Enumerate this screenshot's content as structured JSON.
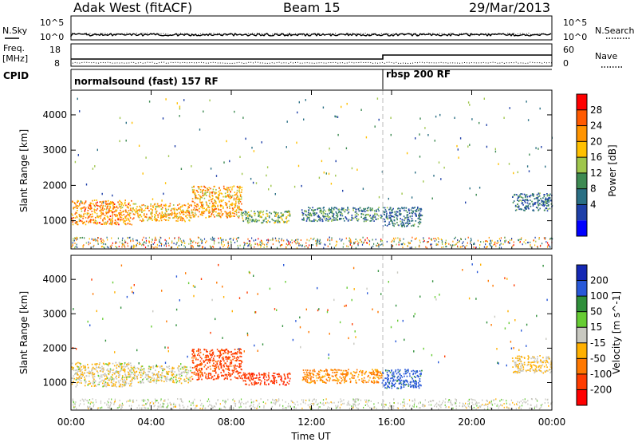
{
  "header": {
    "station": "Adak West (fitACF)",
    "beam": "Beam 15",
    "date": "29/Mar/2013"
  },
  "side_labels": {
    "nsky": "N.Sky",
    "nsearch": "N.Search",
    "freq": "Freq.",
    "freq_unit": "[MHz]",
    "nave": "Nave",
    "cpid": "CPID"
  },
  "noise_axis": {
    "left_ticks": [
      "10^5",
      "10^0"
    ],
    "right_ticks": [
      "10^5",
      "10^0"
    ]
  },
  "freq_axis": {
    "left_ticks": [
      "18",
      "8"
    ],
    "right_ticks": [
      "60",
      "0"
    ]
  },
  "cpid_segments": [
    {
      "label": "normalsound (fast) 157 RF",
      "start_hour": 0
    },
    {
      "label": "rbsp 200 RF",
      "start_hour": 15.6
    }
  ],
  "x_axis": {
    "label": "Time UT",
    "ticks": [
      "00:00",
      "04:00",
      "08:00",
      "12:00",
      "16:00",
      "20:00",
      "00:00"
    ],
    "range_hours": [
      0,
      24
    ]
  },
  "panels": [
    {
      "ylabel": "Slant Range [km]",
      "yticks": [
        "4000",
        "3000",
        "2000",
        "1000"
      ]
    },
    {
      "ylabel": "Slant Range [km]",
      "yticks": [
        "4000",
        "3000",
        "2000",
        "1000"
      ]
    }
  ],
  "power_colorbar": {
    "label": "Power [dB]",
    "ticks": [
      "28",
      "24",
      "20",
      "16",
      "12",
      "8",
      "4"
    ],
    "colors": [
      "#ff0000",
      "#ff5a00",
      "#ff9400",
      "#ffc000",
      "#9fc64c",
      "#3d8a52",
      "#2a6f84",
      "#1e3fa8",
      "#0000ff"
    ]
  },
  "velocity_colorbar": {
    "label": "Velocity [m s^-1]",
    "ticks": [
      "200",
      "100",
      "50",
      "15",
      "-15",
      "-50",
      "-100",
      "-200"
    ],
    "colors": [
      "#1428b4",
      "#2858d8",
      "#2f8f3a",
      "#66cc33",
      "#c8c8c0",
      "#ffb000",
      "#ff7800",
      "#ff3c00",
      "#ff0000"
    ]
  },
  "chart_data": {
    "type": "heatmap",
    "title": "Adak West (fitACF)  Beam 15  29/Mar/2013",
    "xlabel": "Time UT",
    "ylabel": "Slant Range [km]",
    "xlim_hours": [
      0,
      24
    ],
    "ylim_km": [
      200,
      4700
    ],
    "panels": [
      "Power [dB]",
      "Velocity [m s^-1]"
    ],
    "scatter_regions": [
      {
        "t_start": 0.0,
        "t_end": 3.0,
        "range_km": [
          900,
          1600
        ],
        "power_dB": 22,
        "velocity": -10
      },
      {
        "t_start": 3.0,
        "t_end": 6.0,
        "range_km": [
          1000,
          1500
        ],
        "power_dB": 20,
        "velocity": -5
      },
      {
        "t_start": 6.0,
        "t_end": 8.5,
        "range_km": [
          1100,
          2000
        ],
        "power_dB": 20,
        "velocity": -120
      },
      {
        "t_start": 8.5,
        "t_end": 11.0,
        "range_km": [
          950,
          1300
        ],
        "power_dB": 12,
        "velocity": -180
      },
      {
        "t_start": 11.5,
        "t_end": 15.5,
        "range_km": [
          1000,
          1400
        ],
        "power_dB": 8,
        "velocity": -60
      },
      {
        "t_start": 15.5,
        "t_end": 17.5,
        "range_km": [
          850,
          1400
        ],
        "power_dB": 6,
        "velocity": 120
      },
      {
        "t_start": 22.0,
        "t_end": 24.0,
        "range_km": [
          1300,
          1800
        ],
        "power_dB": 6,
        "velocity": -20
      }
    ]
  }
}
